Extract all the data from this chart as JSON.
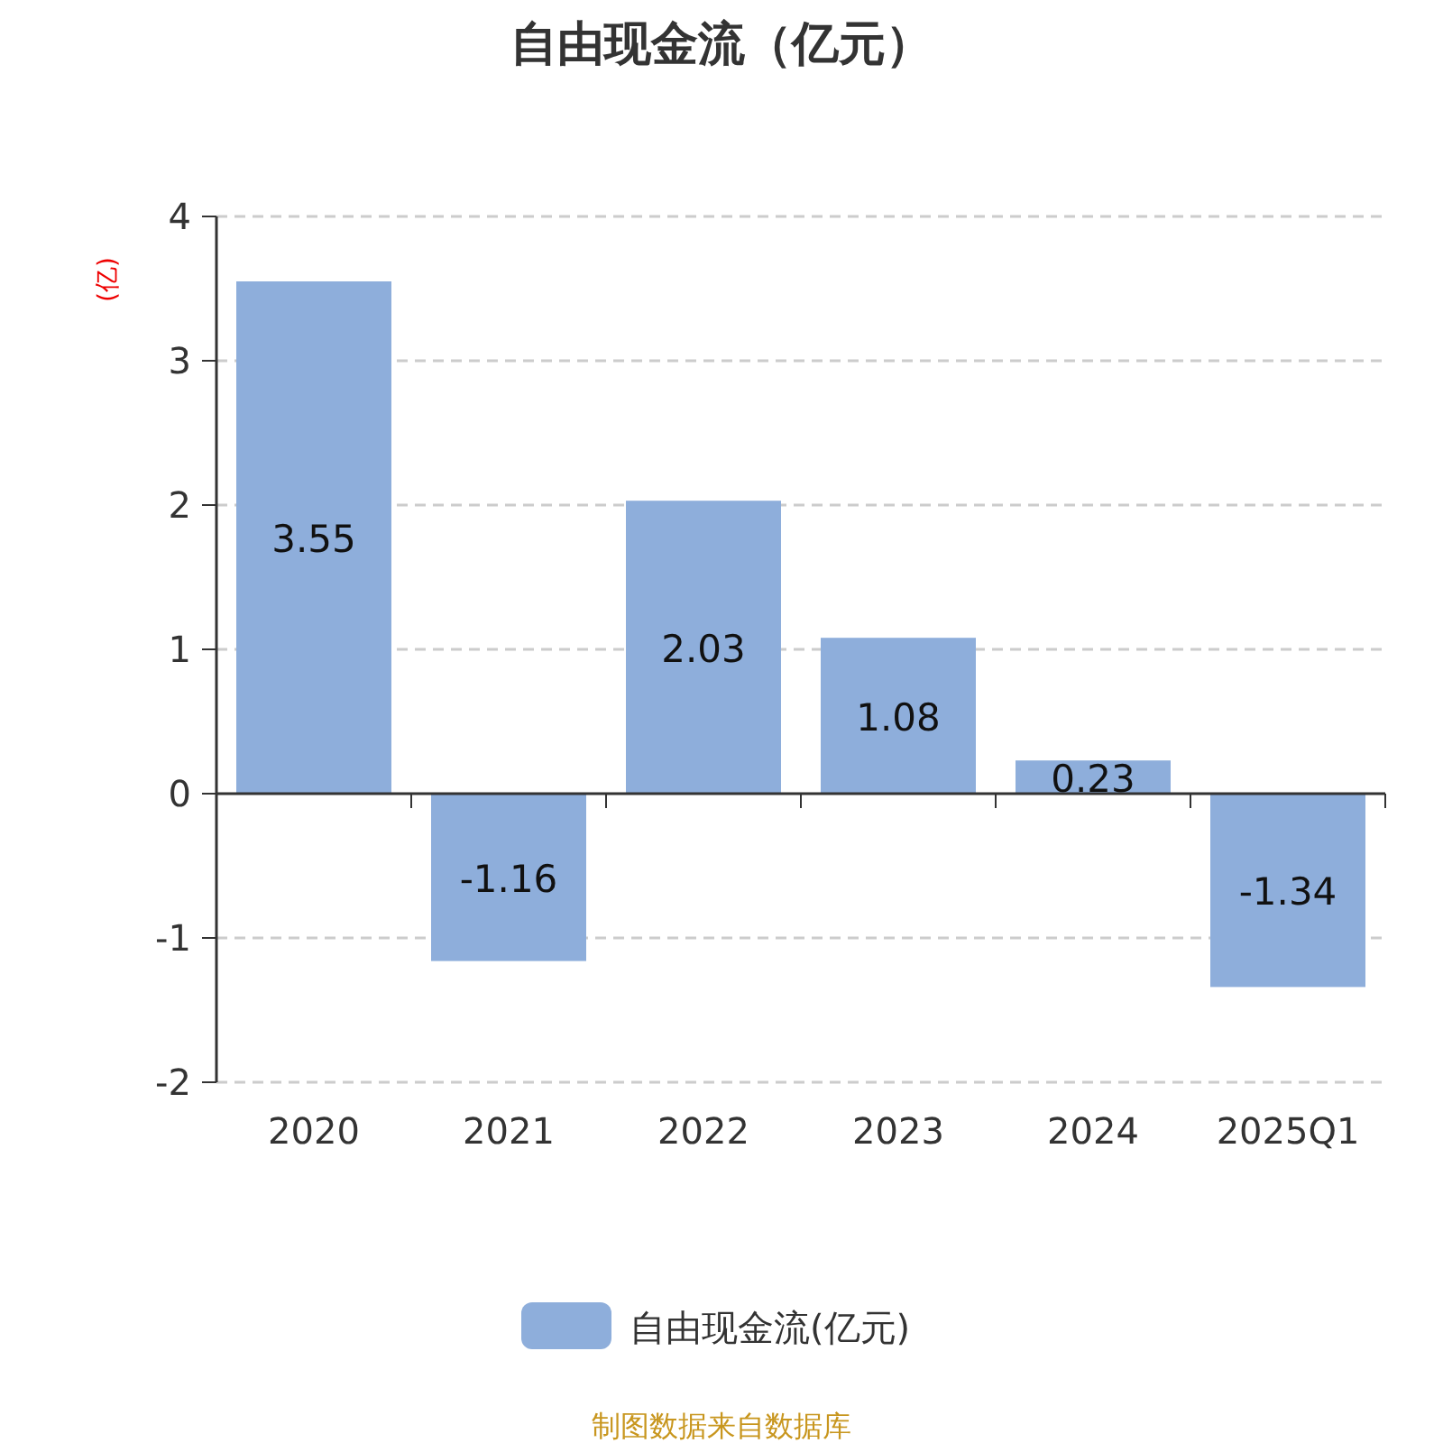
{
  "chart_data": {
    "type": "bar",
    "title": "自由现金流（亿元）",
    "ylabel": "(亿)",
    "categories": [
      "2020",
      "2021",
      "2022",
      "2023",
      "2024",
      "2025Q1"
    ],
    "series": [
      {
        "name": "自由现金流(亿元)",
        "color": "#8eaedb",
        "values": [
          3.55,
          -1.16,
          2.03,
          1.08,
          0.23,
          -1.34
        ]
      }
    ],
    "ylim": [
      -2,
      4
    ],
    "yticks": [
      -2,
      -1,
      0,
      1,
      2,
      3,
      4
    ],
    "grid": "y",
    "legend": "bottom",
    "data_labels": true,
    "annotations": [
      "制图数据来自数据库"
    ]
  }
}
